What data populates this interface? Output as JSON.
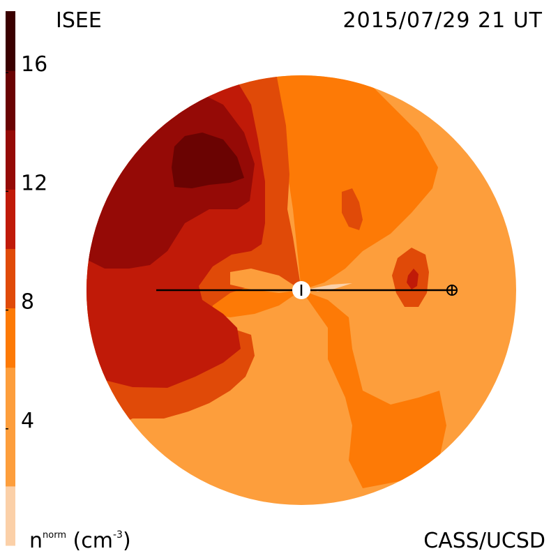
{
  "header": {
    "left": "ISEE",
    "right": "2015/07/29 21 UT"
  },
  "footer": {
    "quantity": "n",
    "quantity_sup": "norm",
    "unit_open": "(cm",
    "unit_exp": "-3",
    "unit_close": ")",
    "credit": "CASS/UCSD"
  },
  "chart_data": {
    "type": "heatmap",
    "title": "",
    "colorbar": {
      "tick_labels": [
        "4",
        "8",
        "12",
        "16"
      ],
      "tick_values": [
        4,
        8,
        12,
        16
      ],
      "range": [
        0,
        18
      ],
      "levels": [
        {
          "min": 0,
          "max": 2,
          "color": "#fbd0a8"
        },
        {
          "min": 2,
          "max": 6,
          "color": "#fd9e3c"
        },
        {
          "min": 6,
          "max": 8,
          "color": "#fd7a06"
        },
        {
          "min": 8,
          "max": 10,
          "color": "#e04a08"
        },
        {
          "min": 10,
          "max": 12,
          "color": "#c01a08"
        },
        {
          "min": 12,
          "max": 14,
          "color": "#950a06"
        },
        {
          "min": 14,
          "max": 16,
          "color": "#6a0302"
        },
        {
          "min": 16,
          "max": 18,
          "color": "#3a0000"
        }
      ]
    },
    "markers": [
      {
        "name": "Sun"
      },
      {
        "name": "Earth"
      }
    ],
    "sun_earth_line": true
  }
}
